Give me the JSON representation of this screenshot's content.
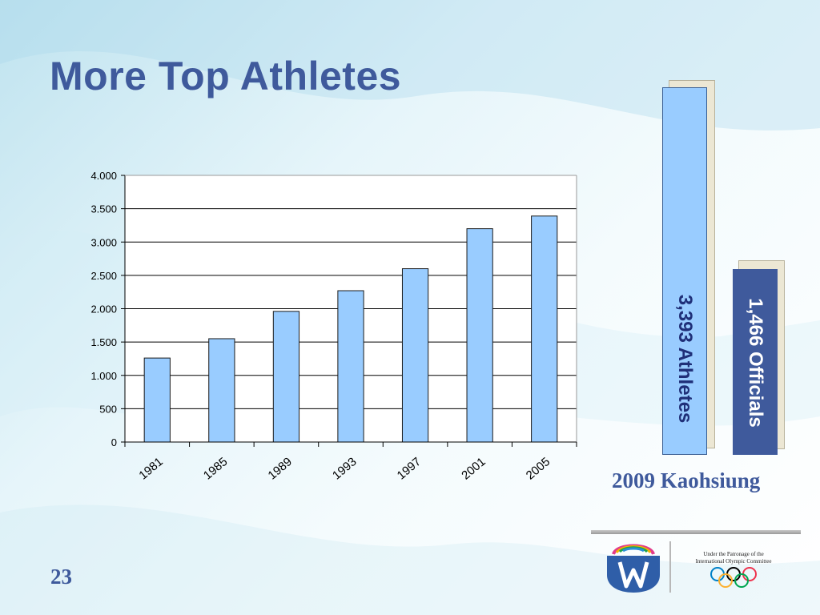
{
  "slide": {
    "title": "More Top Athletes",
    "athletes_label": "3,393 Athletes",
    "officials_label": "1,466 Officials",
    "event_label": "2009 Kaohsiung",
    "patronage_line1": "Under the Patronage of the",
    "patronage_line2": "International Olympic Committee",
    "page_number": "23"
  },
  "colors": {
    "title": "#3f5a9c",
    "bar_fill": "#99ccff",
    "bar_stroke": "#1a1a1a",
    "officials_bar": "#3f5a9c",
    "shadow": "#ece7d4"
  },
  "icons": {
    "logo": "world-games-logo",
    "rings": "olympic-rings-icon"
  },
  "chart_data": {
    "type": "bar",
    "categories": [
      "1981",
      "1985",
      "1989",
      "1993",
      "1997",
      "2001",
      "2005"
    ],
    "values": [
      1260,
      1550,
      1960,
      2270,
      2600,
      3200,
      3390
    ],
    "ylim": [
      0,
      4000
    ],
    "yticks": [
      0,
      500,
      1000,
      1500,
      2000,
      2500,
      3000,
      3500,
      4000
    ],
    "ytick_labels": [
      "0",
      "500",
      "1.000",
      "1.500",
      "2.000",
      "2.500",
      "3.000",
      "3.500",
      "4.000"
    ],
    "title": "",
    "xlabel": "",
    "ylabel": "",
    "grid": true,
    "legend": "none"
  },
  "side_bars": {
    "type": "bar",
    "categories": [
      "Athletes",
      "Officials"
    ],
    "values": [
      3393,
      1466
    ]
  }
}
